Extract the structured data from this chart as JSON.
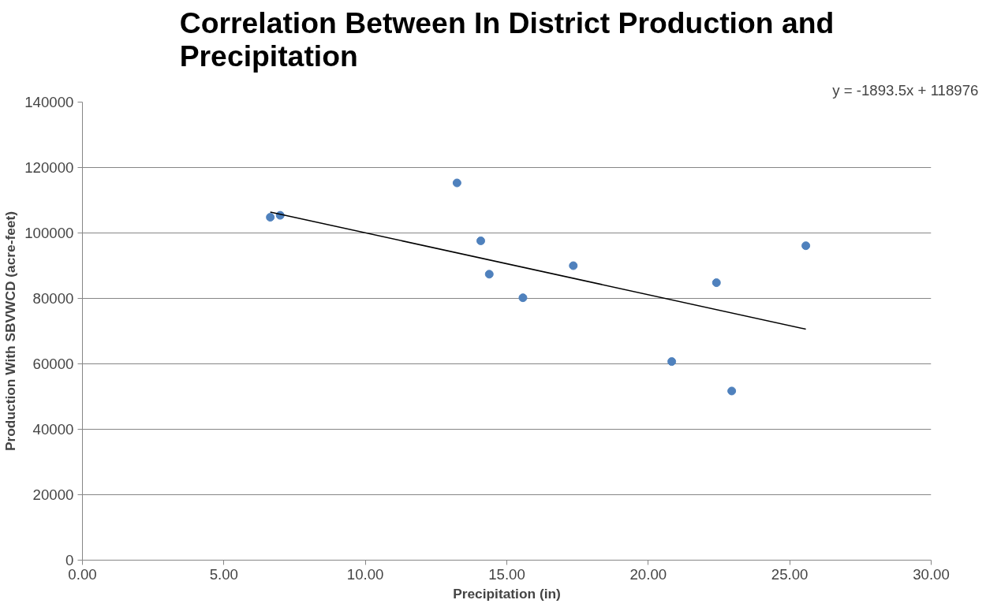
{
  "chart_data": {
    "type": "scatter",
    "title": "Correlation Between In District Production and Precipitation",
    "xlabel": "Precipitation (in)",
    "ylabel": "Production With SBVWCD (acre-feet)",
    "annotations": [
      "y = -1893.5x + 118976"
    ],
    "series": [
      {
        "color": "#4f81bd",
        "marker": "circle",
        "x": [
          6.64,
          6.99,
          13.24,
          14.08,
          14.38,
          15.57,
          17.35,
          20.83,
          22.41,
          22.95,
          25.57
        ],
        "values": [
          104800,
          105400,
          115300,
          97600,
          87400,
          80200,
          90000,
          60700,
          84800,
          51700,
          96100
        ]
      },
      {
        "type": "line",
        "color": "#000000",
        "marker": "none",
        "line_style": "solid",
        "x": [
          6.64,
          25.57
        ],
        "values": [
          106400,
          70600
        ]
      }
    ],
    "xlim": [
      0,
      30
    ],
    "xticks": [
      {
        "value": 0,
        "label": "0.00"
      },
      {
        "value": 5,
        "label": "5.00"
      },
      {
        "value": 10,
        "label": "10.00"
      },
      {
        "value": 15,
        "label": "15.00"
      },
      {
        "value": 20,
        "label": "20.00"
      },
      {
        "value": 25,
        "label": "25.00"
      },
      {
        "value": 30,
        "label": "30.00"
      }
    ],
    "ylim": [
      0,
      140000
    ],
    "yticks": [
      0,
      20000,
      40000,
      60000,
      80000,
      100000,
      120000,
      140000
    ],
    "grid": "y"
  }
}
